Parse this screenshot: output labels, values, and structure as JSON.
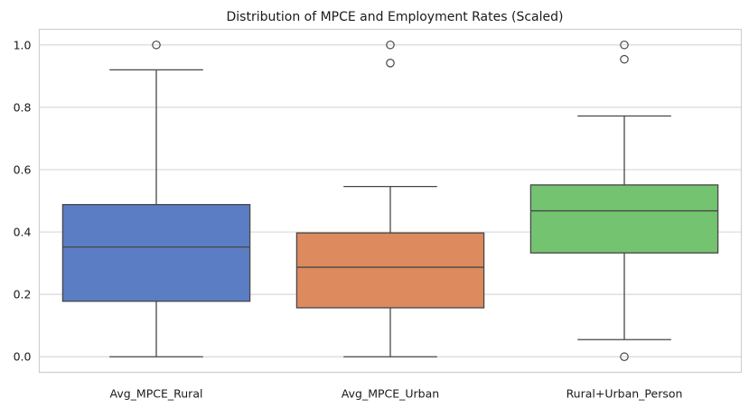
{
  "chart_data": {
    "type": "box",
    "title": "Distribution of MPCE and Employment Rates (Scaled)",
    "xlabel": "",
    "ylabel": "",
    "ylim": [
      -0.05,
      1.05
    ],
    "yticks": [
      "0.0",
      "0.2",
      "0.4",
      "0.6",
      "0.8",
      "1.0"
    ],
    "ytick_values": [
      0.0,
      0.2,
      0.4,
      0.6,
      0.8,
      1.0
    ],
    "grid": true,
    "categories": [
      "Avg_MPCE_Rural",
      "Avg_MPCE_Urban",
      "Rural+Urban_Person"
    ],
    "series": [
      {
        "category": "Avg_MPCE_Rural",
        "color": "#5a7dc4",
        "whisker_low": 0.0,
        "q1": 0.178,
        "median": 0.352,
        "q3": 0.488,
        "whisker_high": 0.92,
        "outliers": [
          1.0
        ]
      },
      {
        "category": "Avg_MPCE_Urban",
        "color": "#dd8a5e",
        "whisker_low": 0.0,
        "q1": 0.157,
        "median": 0.287,
        "q3": 0.397,
        "whisker_high": 0.546,
        "outliers": [
          1.0,
          0.942
        ]
      },
      {
        "category": "Rural+Urban_Person",
        "color": "#74c370",
        "whisker_low": 0.055,
        "q1": 0.333,
        "median": 0.468,
        "q3": 0.551,
        "whisker_high": 0.772,
        "outliers": [
          1.0,
          0.954,
          0.0
        ]
      }
    ]
  }
}
